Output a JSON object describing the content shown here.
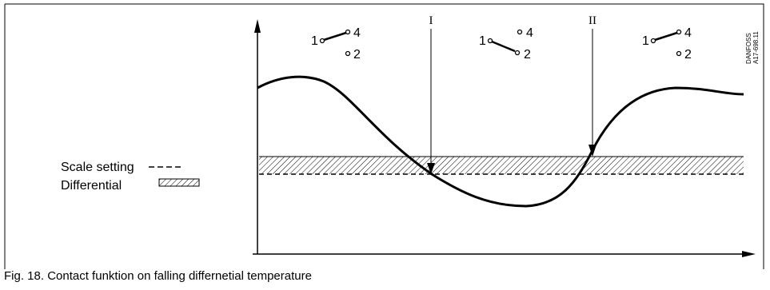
{
  "legend": {
    "scale_setting": "Scale setting",
    "differential": "Differential"
  },
  "markers": [
    "I",
    "II"
  ],
  "contact_states": [
    {
      "terminals": [
        "1",
        "4",
        "2"
      ],
      "closed_to": "4"
    },
    {
      "terminals": [
        "1",
        "4",
        "2"
      ],
      "closed_to": "2"
    },
    {
      "terminals": [
        "1",
        "4",
        "2"
      ],
      "closed_to": "4"
    }
  ],
  "stamp": {
    "line1": "DANFOSS",
    "line2": "A17-698.11"
  },
  "caption": "Fig. 18. Contact funktion on falling differnetial temperature"
}
